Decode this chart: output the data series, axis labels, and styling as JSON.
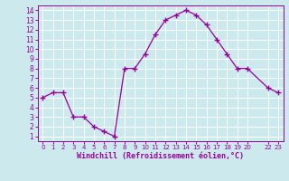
{
  "x": [
    0,
    1,
    2,
    3,
    4,
    5,
    6,
    7,
    8,
    9,
    10,
    11,
    12,
    13,
    14,
    15,
    16,
    17,
    18,
    19,
    20,
    22,
    23
  ],
  "y": [
    5.0,
    5.5,
    5.5,
    3.0,
    3.0,
    2.0,
    1.5,
    1.0,
    8.0,
    8.0,
    9.5,
    11.5,
    13.0,
    13.5,
    14.0,
    13.5,
    12.5,
    11.0,
    9.5,
    8.0,
    8.0,
    6.0,
    5.5
  ],
  "line_color": "#990099",
  "marker": "+",
  "marker_size": 4,
  "marker_lw": 1.0,
  "bg_color": "#cce9ed",
  "grid_color": "#ffffff",
  "xlabel": "Windchill (Refroidissement éolien,°C)",
  "tick_color": "#990099",
  "xlim": [
    -0.5,
    23.5
  ],
  "ylim": [
    0.5,
    14.5
  ],
  "yticks": [
    1,
    2,
    3,
    4,
    5,
    6,
    7,
    8,
    9,
    10,
    11,
    12,
    13,
    14
  ],
  "x_tick_positions": [
    0,
    1,
    2,
    3,
    4,
    5,
    6,
    7,
    8,
    9,
    10,
    11,
    12,
    13,
    14,
    15,
    16,
    17,
    18,
    19,
    20,
    22,
    23
  ],
  "x_tick_labels": [
    "0",
    "1",
    "2",
    "3",
    "4",
    "5",
    "6",
    "7",
    "8",
    "9",
    "10",
    "11",
    "12",
    "13",
    "14",
    "15",
    "16",
    "17",
    "18",
    "19",
    "20",
    "22",
    "23"
  ],
  "figsize": [
    3.2,
    2.0
  ],
  "dpi": 100
}
